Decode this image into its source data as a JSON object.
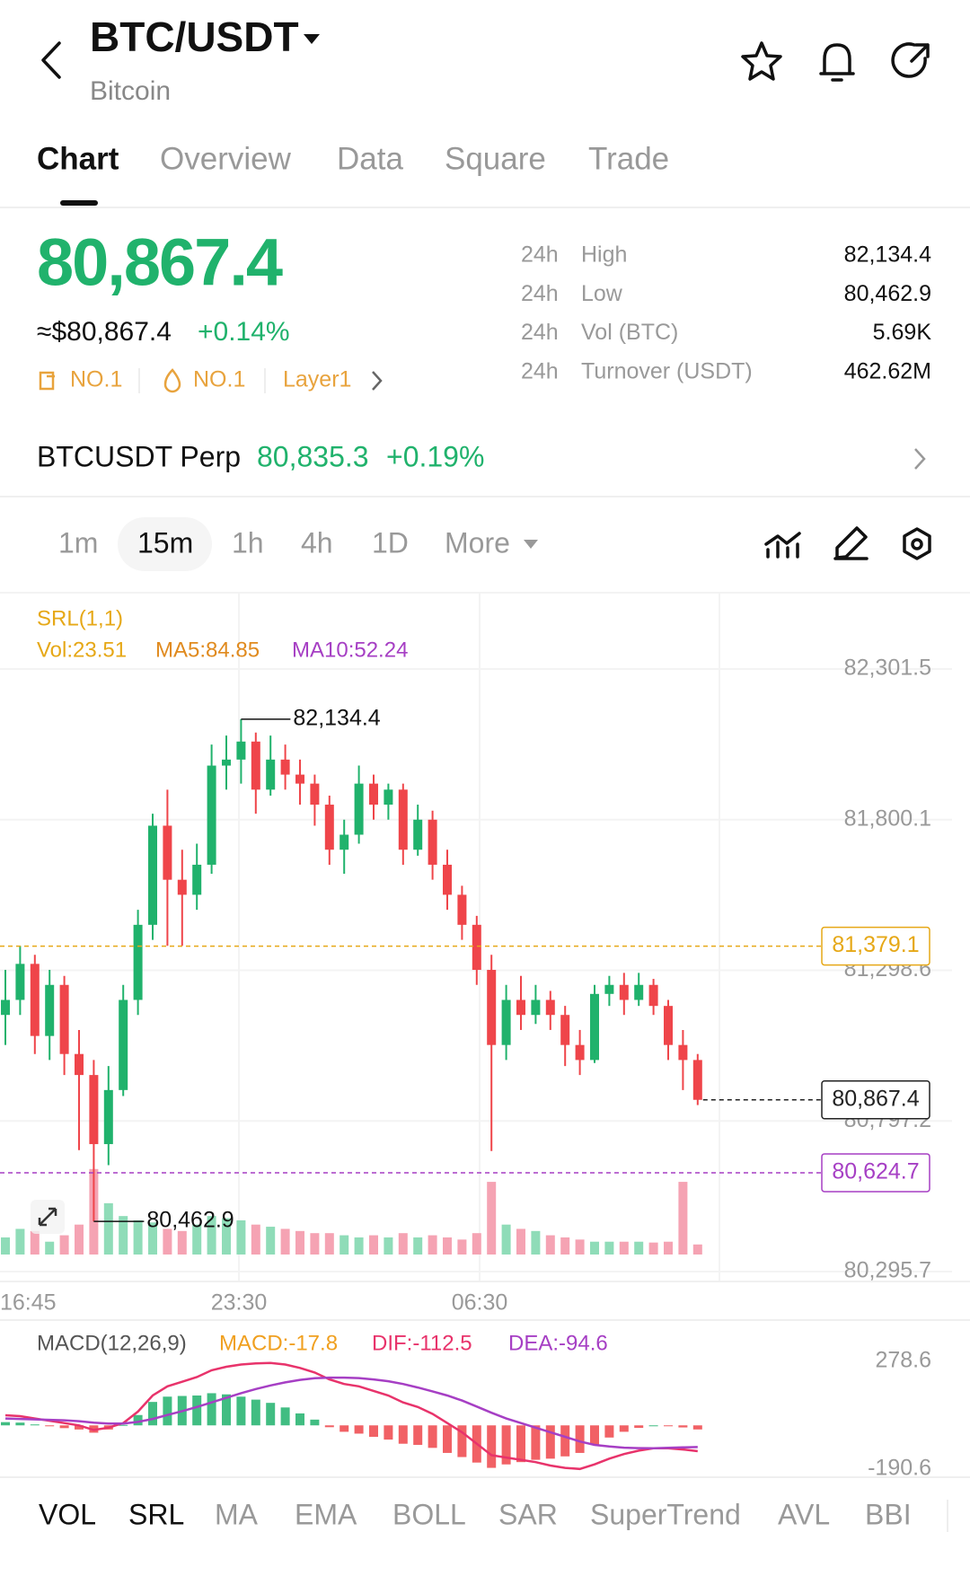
{
  "header": {
    "pair": "BTC/USDT",
    "name": "Bitcoin"
  },
  "tabs": [
    "Chart",
    "Overview",
    "Data",
    "Square",
    "Trade"
  ],
  "ticker": {
    "price": "80,867.4",
    "usd": "≈$80,867.4",
    "change": "+0.14%",
    "tags": [
      "NO.1",
      "NO.1",
      "Layer1"
    ],
    "stats": [
      {
        "period": "24h",
        "label": "High",
        "value": "82,134.4"
      },
      {
        "period": "24h",
        "label": "Low",
        "value": "80,462.9"
      },
      {
        "period": "24h",
        "label": "Vol (BTC)",
        "value": "5.69K"
      },
      {
        "period": "24h",
        "label": "Turnover (USDT)",
        "value": "462.62M"
      }
    ]
  },
  "perp": {
    "name": "BTCUSDT Perp",
    "price": "80,835.3",
    "change": "+0.19%"
  },
  "intervals": [
    "1m",
    "15m",
    "1h",
    "4h",
    "1D",
    "More"
  ],
  "chart_data": {
    "type": "candlestick",
    "up_color": "#20b26c",
    "down_color": "#ef454a",
    "overlay_label": "SRL(1,1)",
    "volume_legend": [
      "Vol:23.51",
      "MA5:84.85",
      "MA10:52.24"
    ],
    "ylim": [
      80295.7,
      82301.5
    ],
    "yticks": [
      {
        "value": 82301.5,
        "label": "82,301.5"
      },
      {
        "value": 81800.1,
        "label": "81,800.1"
      },
      {
        "value": 81298.6,
        "label": "81,298.6"
      },
      {
        "value": 80797.2,
        "label": "80,797.2"
      },
      {
        "value": 80295.7,
        "label": "80,295.7"
      }
    ],
    "xticks": [
      "16:45",
      "23:30",
      "06:30"
    ],
    "high": {
      "value": 82134.4,
      "label": "82,134.4"
    },
    "low": {
      "value": 80462.9,
      "label": "80,462.9"
    },
    "price_lines": [
      {
        "value": 81379.1,
        "label": "81,379.1",
        "color": "#e6a817"
      },
      {
        "value": 80624.7,
        "label": "80,624.7",
        "color": "#a63fc4"
      },
      {
        "value": 80867.4,
        "label": "80,867.4",
        "color": "#222222"
      }
    ],
    "candles": [
      [
        81150,
        81300,
        81050,
        81200
      ],
      [
        81200,
        81380,
        81150,
        81320
      ],
      [
        81320,
        81350,
        81020,
        81080
      ],
      [
        81080,
        81300,
        81000,
        81250
      ],
      [
        81250,
        81280,
        80950,
        81020
      ],
      [
        81020,
        81100,
        80700,
        80950
      ],
      [
        80950,
        81000,
        80462.9,
        80720
      ],
      [
        80720,
        80980,
        80650,
        80900
      ],
      [
        80900,
        81250,
        80880,
        81200
      ],
      [
        81200,
        81500,
        81150,
        81450
      ],
      [
        81450,
        81820,
        81400,
        81780
      ],
      [
        81780,
        81900,
        81380,
        81600
      ],
      [
        81600,
        81700,
        81380,
        81550
      ],
      [
        81550,
        81720,
        81500,
        81650
      ],
      [
        81650,
        82050,
        81620,
        81980
      ],
      [
        81980,
        82080,
        81900,
        82000
      ],
      [
        82000,
        82134.4,
        81920,
        82060
      ],
      [
        82060,
        82090,
        81820,
        81900
      ],
      [
        81900,
        82080,
        81880,
        82000
      ],
      [
        82000,
        82050,
        81900,
        81950
      ],
      [
        81950,
        82000,
        81850,
        81920
      ],
      [
        81920,
        81950,
        81780,
        81850
      ],
      [
        81850,
        81880,
        81650,
        81700
      ],
      [
        81700,
        81800,
        81620,
        81750
      ],
      [
        81750,
        81980,
        81720,
        81920
      ],
      [
        81920,
        81950,
        81800,
        81850
      ],
      [
        81850,
        81920,
        81800,
        81900
      ],
      [
        81900,
        81920,
        81650,
        81700
      ],
      [
        81700,
        81850,
        81680,
        81800
      ],
      [
        81800,
        81830,
        81600,
        81650
      ],
      [
        81650,
        81700,
        81500,
        81550
      ],
      [
        81550,
        81580,
        81400,
        81450
      ],
      [
        81450,
        81480,
        81250,
        81300
      ],
      [
        81300,
        81350,
        80697,
        81050
      ],
      [
        81050,
        81250,
        81000,
        81200
      ],
      [
        81200,
        81280,
        81100,
        81150
      ],
      [
        81150,
        81250,
        81120,
        81200
      ],
      [
        81200,
        81230,
        81100,
        81150
      ],
      [
        81150,
        81180,
        80980,
        81050
      ],
      [
        81050,
        81100,
        80950,
        81000
      ],
      [
        81000,
        81250,
        80990,
        81220
      ],
      [
        81220,
        81280,
        81180,
        81250
      ],
      [
        81250,
        81290,
        81150,
        81200
      ],
      [
        81200,
        81290,
        81180,
        81250
      ],
      [
        81250,
        81270,
        81150,
        81180
      ],
      [
        81180,
        81200,
        81000,
        81050
      ],
      [
        81050,
        81100,
        80900,
        81000
      ],
      [
        81000,
        81020,
        80850,
        80867.4
      ]
    ],
    "volumes": [
      40,
      60,
      55,
      30,
      45,
      70,
      200,
      120,
      90,
      80,
      75,
      60,
      55,
      70,
      90,
      85,
      80,
      70,
      65,
      60,
      55,
      50,
      50,
      45,
      40,
      45,
      40,
      50,
      40,
      45,
      40,
      35,
      50,
      170,
      70,
      60,
      55,
      45,
      40,
      35,
      30,
      30,
      30,
      30,
      28,
      30,
      170,
      23.51
    ],
    "macd": {
      "title": "MACD(12,26,9)",
      "legend": [
        "MACD:-17.8",
        "DIF:-112.5",
        "DEA:-94.6"
      ],
      "ylim": [
        -190.6,
        278.6
      ],
      "yticks": [
        278.6,
        -190.6
      ],
      "dif": [
        44,
        40,
        30,
        20,
        10,
        0,
        -20,
        -10,
        10,
        60,
        130,
        170,
        190,
        210,
        240,
        255,
        265,
        270,
        272,
        265,
        250,
        230,
        200,
        180,
        170,
        150,
        130,
        100,
        80,
        50,
        10,
        -30,
        -80,
        -130,
        -140,
        -150,
        -160,
        -175,
        -185,
        -190,
        -170,
        -145,
        -125,
        -110,
        -100,
        -100,
        -105,
        -112.5
      ],
      "dea": [
        30,
        28,
        26,
        24,
        22,
        18,
        12,
        8,
        8,
        15,
        28,
        45,
        62,
        80,
        100,
        120,
        140,
        158,
        174,
        187,
        198,
        205,
        208,
        208,
        206,
        200,
        192,
        180,
        165,
        148,
        130,
        108,
        82,
        55,
        30,
        10,
        -10,
        -30,
        -50,
        -70,
        -85,
        -92,
        -97,
        -99,
        -100,
        -98,
        -96,
        -94.6
      ],
      "hist": [
        14,
        12,
        4,
        -4,
        -12,
        -18,
        -32,
        -18,
        2,
        45,
        102,
        125,
        128,
        130,
        140,
        135,
        125,
        112,
        98,
        78,
        52,
        25,
        -8,
        -28,
        -36,
        -50,
        -62,
        -80,
        -85,
        -98,
        -120,
        -138,
        -162,
        -185,
        -170,
        -160,
        -150,
        -145,
        -135,
        -120,
        -85,
        -53,
        -28,
        -11,
        0,
        -2,
        -9,
        -17.8
      ]
    }
  },
  "indicators": [
    "VOL",
    "SRL",
    "MA",
    "EMA",
    "BOLL",
    "SAR",
    "SuperTrend",
    "AVL",
    "BBI"
  ]
}
